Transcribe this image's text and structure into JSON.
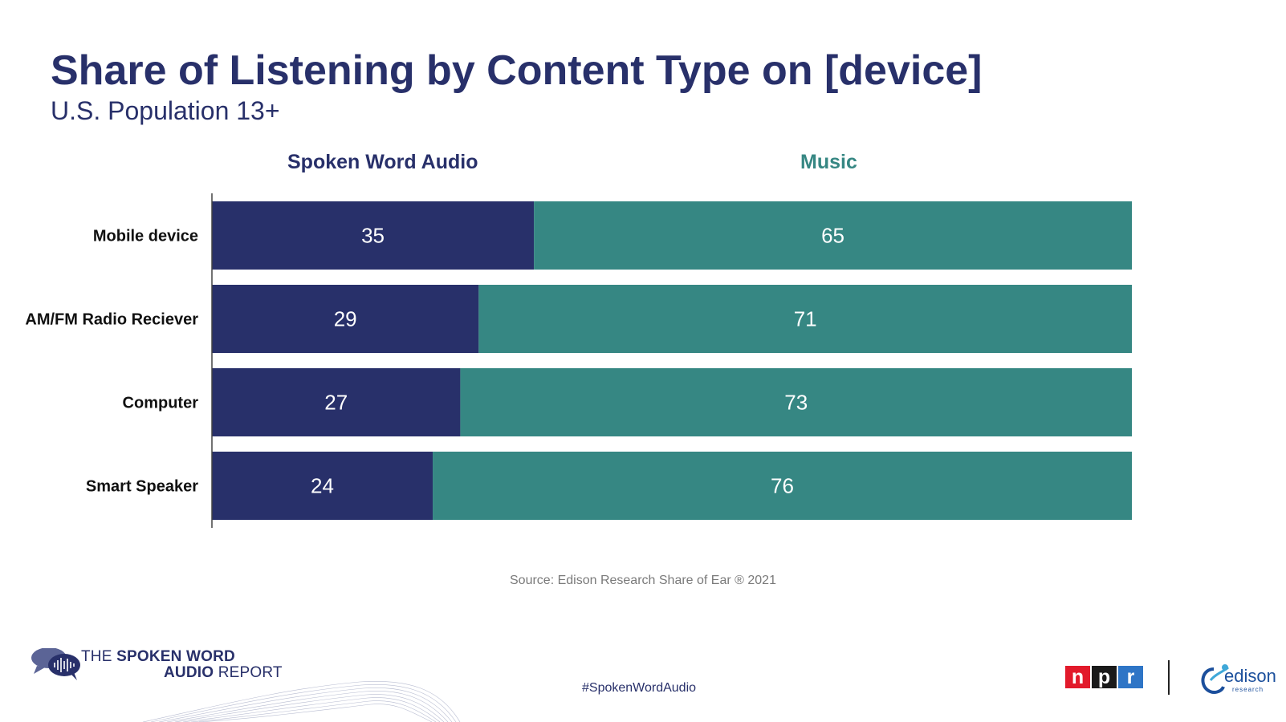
{
  "header": {
    "title": "Share of Listening by Content Type on [device]",
    "subtitle": "U.S. Population 13+"
  },
  "chart_data": {
    "type": "bar",
    "orientation": "horizontal",
    "stacked": true,
    "categories": [
      "Mobile device",
      "AM/FM Radio Reciever",
      "Computer",
      "Smart Speaker"
    ],
    "series": [
      {
        "name": "Spoken Word Audio",
        "values": [
          35,
          29,
          27,
          24
        ],
        "color": "#28306a",
        "label_color": "#28306a"
      },
      {
        "name": "Music",
        "values": [
          65,
          71,
          73,
          76
        ],
        "color": "#368783",
        "label_color": "#368783"
      }
    ],
    "xlim": [
      0,
      100
    ],
    "legend": "top",
    "grid": false
  },
  "footer": {
    "source": "Source: Edison Research Share of Ear ® 2021",
    "hashtag": "#SpokenWordAudio",
    "report_line1_light": "THE ",
    "report_line1_bold": "SPOKEN WORD",
    "report_line2_bold": "AUDIO ",
    "report_line2_light": "REPORT",
    "npr_letters": [
      "n",
      "p",
      "r"
    ],
    "edison_name": "edison",
    "edison_tagline": "research"
  },
  "colors": {
    "navy": "#28306a",
    "teal": "#368783",
    "npr_red": "#e21a2b",
    "npr_black": "#1a1a1a",
    "npr_blue": "#2e75c6"
  }
}
